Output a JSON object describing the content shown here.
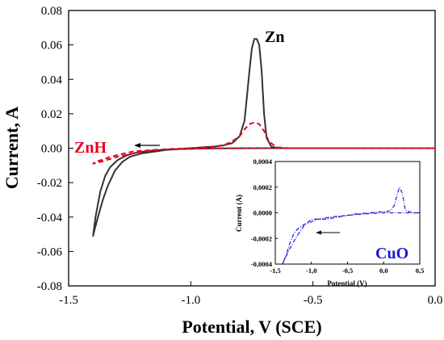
{
  "chart_data": [
    {
      "type": "line",
      "xlabel": "Potential, V (SCE)",
      "ylabel": "Current, A",
      "xlim": [
        -1.5,
        0.0
      ],
      "ylim": [
        -0.08,
        0.08
      ],
      "xticks": [
        -1.5,
        -1.0,
        -0.5,
        0.0
      ],
      "yticks": [
        -0.08,
        -0.06,
        -0.04,
        -0.02,
        0.0,
        0.02,
        0.04,
        0.06,
        0.08
      ],
      "xtick_labels": [
        "-1.5",
        "-1.0",
        "-0.5",
        "0.0"
      ],
      "ytick_labels": [
        "-0.08",
        "-0.06",
        "-0.04",
        "-0.02",
        "0.00",
        "0.02",
        "0.04",
        "0.06",
        "0.08"
      ],
      "series": [
        {
          "name": "Zn",
          "color": "#333333",
          "style": "solid",
          "x": [
            0.0,
            -0.3,
            -0.5,
            -0.62,
            -0.65,
            -0.67,
            -0.69,
            -0.7,
            -0.71,
            -0.72,
            -0.73,
            -0.74,
            -0.75,
            -0.76,
            -0.77,
            -0.78,
            -0.8,
            -0.83,
            -0.87,
            -0.9,
            -0.95,
            -1.0,
            -1.05,
            -1.1,
            -1.15,
            -1.2,
            -1.25,
            -1.28,
            -1.31,
            -1.34,
            -1.36,
            -1.38,
            -1.395,
            -1.4,
            -1.39,
            -1.37,
            -1.35,
            -1.33,
            -1.3,
            -1.26,
            -1.22,
            -1.15,
            -1.05,
            -0.9,
            -0.7,
            -0.4,
            0.0
          ],
          "y": [
            0.0,
            0.0,
            0.0,
            0.0,
            0.0003,
            0.0008,
            0.006,
            0.02,
            0.045,
            0.06,
            0.0635,
            0.0635,
            0.058,
            0.045,
            0.03,
            0.016,
            0.007,
            0.003,
            0.0015,
            0.001,
            0.0005,
            0.0,
            -0.0005,
            -0.001,
            -0.002,
            -0.003,
            -0.005,
            -0.008,
            -0.013,
            -0.022,
            -0.03,
            -0.04,
            -0.048,
            -0.051,
            -0.04,
            -0.025,
            -0.016,
            -0.011,
            -0.007,
            -0.004,
            -0.0025,
            -0.0012,
            -0.0005,
            -0.0001,
            0.0,
            0.0,
            0.0
          ]
        },
        {
          "name": "ZnH",
          "color": "#e8001c",
          "style": "dashed",
          "x": [
            0.0,
            -0.3,
            -0.6,
            -0.65,
            -0.68,
            -0.7,
            -0.72,
            -0.74,
            -0.76,
            -0.78,
            -0.8,
            -0.83,
            -0.86,
            -0.9,
            -0.95,
            -1.0,
            -1.05,
            -1.1,
            -1.15,
            -1.2,
            -1.24,
            -1.27,
            -1.3,
            -1.33,
            -1.36,
            -1.39,
            -1.4,
            -1.37,
            -1.3,
            -1.2,
            -1.1,
            -0.9,
            -0.6,
            0.0
          ],
          "y": [
            0.0,
            0.0,
            0.0,
            0.0005,
            0.004,
            0.01,
            0.014,
            0.015,
            0.014,
            0.011,
            0.007,
            0.004,
            0.002,
            0.001,
            0.0005,
            0.0,
            -0.0003,
            -0.0006,
            -0.001,
            -0.0015,
            -0.002,
            -0.003,
            -0.004,
            -0.005,
            -0.0065,
            -0.008,
            -0.009,
            -0.008,
            -0.005,
            -0.002,
            -0.0005,
            0.0,
            0.0,
            0.0
          ]
        }
      ],
      "annotations": [
        {
          "text": "Zn",
          "color": "#000000"
        },
        {
          "text": "ZnH",
          "color": "#e8001c"
        }
      ]
    },
    {
      "type": "line",
      "inset": true,
      "xlabel": "Potential (V)",
      "ylabel": "Current (A)",
      "xlim": [
        -1.5,
        0.5
      ],
      "ylim": [
        -0.0004,
        0.0004
      ],
      "xticks": [
        -1.5,
        -1.0,
        -0.5,
        0.0,
        0.5
      ],
      "xtick_labels": [
        "-1,5",
        "-1,0",
        "-0,5",
        "0,0",
        "0,5"
      ],
      "yticks": [
        -0.0004,
        -0.0002,
        0.0,
        0.0002,
        0.0004
      ],
      "ytick_labels": [
        "-0,0004",
        "-0,0002",
        "0,0000",
        "0,0002",
        "0,0004"
      ],
      "series": [
        {
          "name": "CuO",
          "color": "#1a1ad6",
          "style": "dashdot",
          "x": [
            0.5,
            0.4,
            0.35,
            0.3,
            0.26,
            0.22,
            0.19,
            0.15,
            0.1,
            0.05,
            0.0,
            -0.2,
            -0.4,
            -0.5,
            -0.6,
            -0.8,
            -1.0,
            -1.1,
            -1.2,
            -1.3,
            -1.4,
            -1.35,
            -1.3,
            -1.25,
            -1.2,
            -1.1,
            -1.0,
            -0.9,
            -0.7,
            -0.5,
            -0.3,
            0.0,
            0.2,
            0.5
          ],
          "y": [
            0.0,
            0.0,
            1e-05,
            2e-05,
            0.00015,
            0.0002,
            0.00015,
            6e-05,
            2e-05,
            1e-05,
            1e-05,
            0.0,
            -1e-05,
            -2e-05,
            -3e-05,
            -5e-05,
            -5e-05,
            -0.0001,
            -0.00018,
            -0.00028,
            -0.0004,
            -0.00033,
            -0.00024,
            -0.00017,
            -0.00013,
            -9e-05,
            -7e-05,
            -5e-05,
            -3e-05,
            -2e-05,
            -1e-05,
            0.0,
            0.0,
            0.0
          ]
        }
      ],
      "annotations": [
        {
          "text": "CuO",
          "color": "#1a1ad6"
        }
      ]
    }
  ]
}
